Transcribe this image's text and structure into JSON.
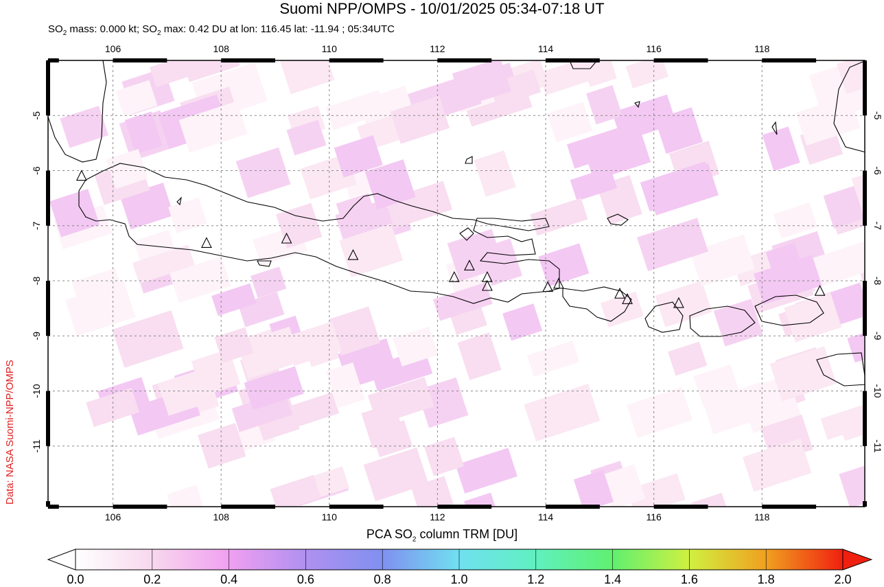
{
  "title": "Suomi NPP/OMPS - 10/01/2025 05:34-07:18 UT",
  "subtitle": {
    "prefix": "SO",
    "sub": "2",
    "mid": " mass: 0.000 kt; SO",
    "sub2": "2",
    "rest": " max: 0.42 DU at lon: 116.45 lat: -11.94 ; 05:34UTC"
  },
  "credit": "Data: NASA Suomi-NPP/OMPS",
  "colorbar": {
    "title_pre": "PCA SO",
    "title_sub": "2",
    "title_post": " column TRM [DU]",
    "ticks": [
      "0.0",
      "0.2",
      "0.4",
      "0.6",
      "0.8",
      "1.0",
      "1.2",
      "1.4",
      "1.6",
      "1.8",
      "2.0"
    ],
    "colors": [
      "#ffffff",
      "#f8d8ee",
      "#f0a0f0",
      "#b090f0",
      "#8090f0",
      "#70e0f0",
      "#60f0c0",
      "#60f070",
      "#d0f040",
      "#f0a020",
      "#f02010"
    ]
  },
  "map": {
    "lon_ticks": [
      "106",
      "108",
      "110",
      "112",
      "114",
      "116",
      "118"
    ],
    "lat_ticks": [
      "-5",
      "-6",
      "-7",
      "-8",
      "-9",
      "-10",
      "-11"
    ],
    "volcanoes": [
      {
        "lon": 105.42,
        "lat": -6.1
      },
      {
        "lon": 107.73,
        "lat": -7.32
      },
      {
        "lon": 109.21,
        "lat": -7.24
      },
      {
        "lon": 110.44,
        "lat": -7.54
      },
      {
        "lon": 112.31,
        "lat": -7.94
      },
      {
        "lon": 112.59,
        "lat": -7.73
      },
      {
        "lon": 112.92,
        "lat": -7.94
      },
      {
        "lon": 112.92,
        "lat": -8.1
      },
      {
        "lon": 114.04,
        "lat": -8.12
      },
      {
        "lon": 114.24,
        "lat": -8.06
      },
      {
        "lon": 115.37,
        "lat": -8.24
      },
      {
        "lon": 115.51,
        "lat": -8.34
      },
      {
        "lon": 116.46,
        "lat": -8.41
      },
      {
        "lon": 119.07,
        "lat": -8.19
      }
    ]
  }
}
